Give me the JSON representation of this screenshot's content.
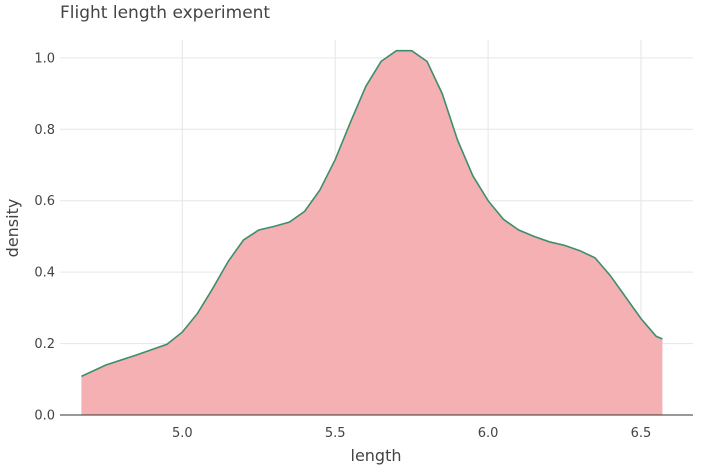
{
  "chart_data": {
    "type": "area",
    "title": "Flight length experiment",
    "xlabel": "length",
    "ylabel": "density",
    "xlim": [
      4.6,
      6.67
    ],
    "ylim": [
      0,
      1.05
    ],
    "xticks": [
      "5.0",
      "5.5",
      "6.0",
      "6.5"
    ],
    "yticks": [
      "0.0",
      "0.2",
      "0.4",
      "0.6",
      "0.8",
      "1.0"
    ],
    "grid": true,
    "series": [
      {
        "x": [
          4.67,
          4.75,
          4.85,
          4.95,
          5.0,
          5.05,
          5.1,
          5.15,
          5.2,
          5.25,
          5.3,
          5.35,
          5.4,
          5.45,
          5.5,
          5.55,
          5.6,
          5.65,
          5.7,
          5.75,
          5.8,
          5.85,
          5.9,
          5.95,
          6.0,
          6.05,
          6.1,
          6.15,
          6.2,
          6.25,
          6.3,
          6.35,
          6.4,
          6.45,
          6.5,
          6.55,
          6.57
        ],
        "y": [
          0.108,
          0.14,
          0.168,
          0.198,
          0.232,
          0.285,
          0.355,
          0.43,
          0.49,
          0.518,
          0.528,
          0.54,
          0.57,
          0.63,
          0.715,
          0.82,
          0.92,
          0.99,
          1.02,
          1.02,
          0.99,
          0.9,
          0.77,
          0.67,
          0.6,
          0.548,
          0.518,
          0.5,
          0.485,
          0.475,
          0.46,
          0.44,
          0.39,
          0.33,
          0.27,
          0.22,
          0.213
        ]
      }
    ],
    "fill_color": "#f4b0b2",
    "line_color": "#3f8e6a",
    "axis_color": "#333333"
  }
}
